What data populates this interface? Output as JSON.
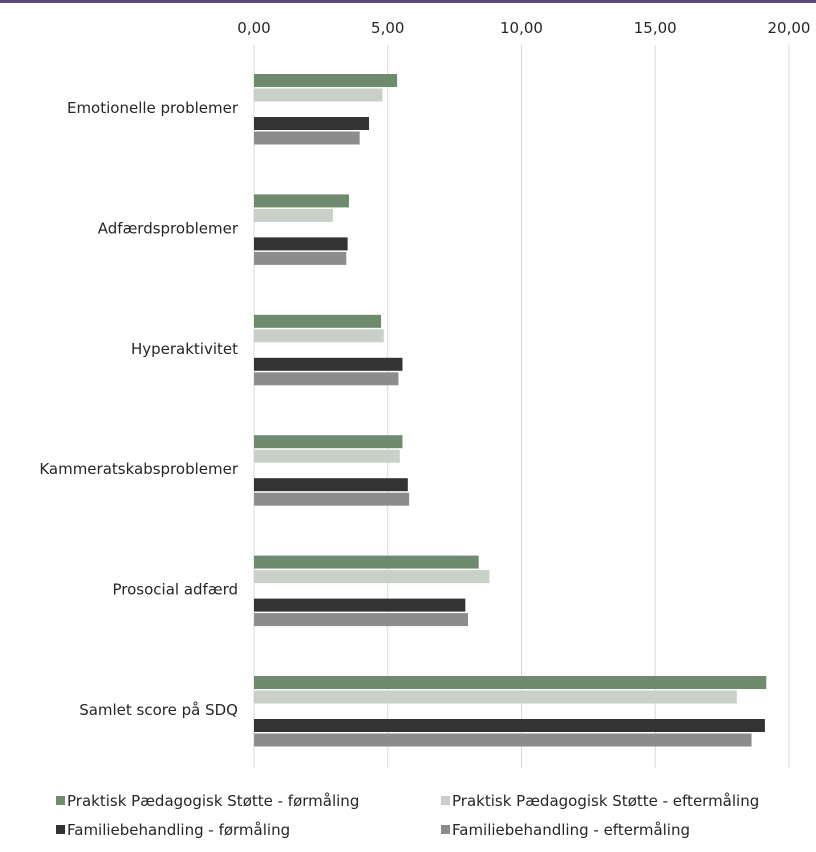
{
  "chart_data": {
    "type": "bar",
    "orientation": "horizontal",
    "categories": [
      "Emotionelle problemer",
      "Adfærdsproblemer",
      "Hyperaktivitet",
      "Kammeratskabsproblemer",
      "Prosocial adfærd",
      "Samlet score på SDQ"
    ],
    "series": [
      {
        "name": "Praktisk Pædagogisk Støtte - førmåling",
        "color": "#6e8b6e",
        "values": [
          5.35,
          3.55,
          4.75,
          5.55,
          8.4,
          19.15
        ]
      },
      {
        "name": "Praktisk Pædagogisk Støtte - eftermåling",
        "color": "#c8d0c8",
        "values": [
          4.8,
          2.95,
          4.85,
          5.45,
          8.8,
          18.05
        ]
      },
      {
        "name": "Familiebehandling - førmåling",
        "color": "#333333",
        "values": [
          4.3,
          3.5,
          5.55,
          5.75,
          7.9,
          19.1
        ]
      },
      {
        "name": "Familiebehandling - eftermåling",
        "color": "#8c8c8c",
        "values": [
          3.95,
          3.45,
          5.4,
          5.8,
          8.0,
          18.6
        ]
      }
    ],
    "xlim": [
      0,
      20
    ],
    "ticks": [
      "0,00",
      "5,00",
      "10,00",
      "15,00",
      "20,00"
    ],
    "tick_values": [
      0,
      5,
      10,
      15,
      20
    ],
    "axis_position": "top",
    "grid": true,
    "legend_position": "bottom"
  }
}
